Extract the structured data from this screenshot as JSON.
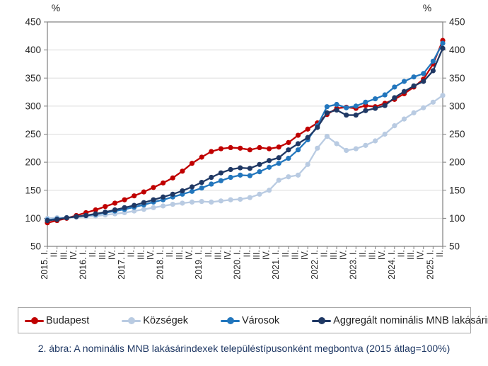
{
  "figure": {
    "caption": "2. ábra: A nominális MNB lakásárindexek településtípusonként megbontva (2015 átlag=100%)"
  },
  "chart_data": {
    "type": "line",
    "title": "",
    "unit_label_left": "%",
    "unit_label_right": "%",
    "grid": true,
    "legend_position": "bottom",
    "y_axis": {
      "min": 50,
      "max": 450,
      "step": 50,
      "tick_labels": [
        "50",
        "100",
        "150",
        "200",
        "250",
        "300",
        "350",
        "400",
        "450"
      ]
    },
    "x_labels": [
      "2015. I.",
      "II.",
      "III.",
      "IV.",
      "2016. I.",
      "II.",
      "III.",
      "IV.",
      "2017. I.",
      "II.",
      "III.",
      "IV.",
      "2018. I.",
      "II.",
      "III.",
      "IV.",
      "2019. I.",
      "II.",
      "III.",
      "IV.",
      "2020. I.",
      "II.",
      "III.",
      "IV.",
      "2021. I.",
      "II.",
      "III.",
      "IV.",
      "2022. I.",
      "II.",
      "III.",
      "IV.",
      "2023. I.",
      "II.",
      "III.",
      "IV.",
      "2024. I.",
      "II.",
      "III.",
      "IV.",
      "2025. I.",
      "II."
    ],
    "series": [
      {
        "name": "Budapest",
        "color": "#c00000",
        "values": [
          92,
          96,
          100,
          105,
          110,
          115,
          121,
          127,
          133,
          140,
          147,
          155,
          163,
          172,
          184,
          198,
          209,
          219,
          224,
          226,
          225,
          222,
          226,
          224,
          227,
          235,
          248,
          259,
          270,
          285,
          296,
          298,
          296,
          301,
          299,
          305,
          312,
          322,
          334,
          348,
          375,
          417
        ]
      },
      {
        "name": "Községek",
        "color": "#b9cbe2",
        "values": [
          100,
          101,
          101,
          102,
          103,
          104,
          106,
          108,
          110,
          113,
          116,
          119,
          122,
          125,
          127,
          129,
          130,
          129,
          131,
          133,
          134,
          137,
          143,
          150,
          168,
          174,
          177,
          196,
          225,
          246,
          233,
          221,
          224,
          230,
          238,
          250,
          265,
          277,
          288,
          297,
          307,
          319
        ]
      },
      {
        "name": "Városok",
        "color": "#2276bd",
        "values": [
          97,
          99,
          101,
          103,
          105,
          107,
          110,
          113,
          116,
          120,
          124,
          129,
          133,
          138,
          143,
          148,
          154,
          161,
          167,
          173,
          177,
          176,
          183,
          191,
          198,
          207,
          222,
          240,
          265,
          299,
          303,
          297,
          300,
          307,
          313,
          320,
          334,
          344,
          352,
          358,
          380,
          412
        ]
      },
      {
        "name": "Aggregált nominális MNB lakásárindex",
        "color": "#1f3864",
        "values": [
          96,
          98,
          101,
          103,
          105,
          108,
          111,
          115,
          119,
          123,
          128,
          133,
          138,
          143,
          149,
          156,
          164,
          173,
          181,
          187,
          190,
          189,
          196,
          203,
          208,
          222,
          233,
          244,
          262,
          288,
          293,
          284,
          284,
          292,
          296,
          301,
          315,
          326,
          336,
          344,
          363,
          403
        ]
      }
    ]
  }
}
